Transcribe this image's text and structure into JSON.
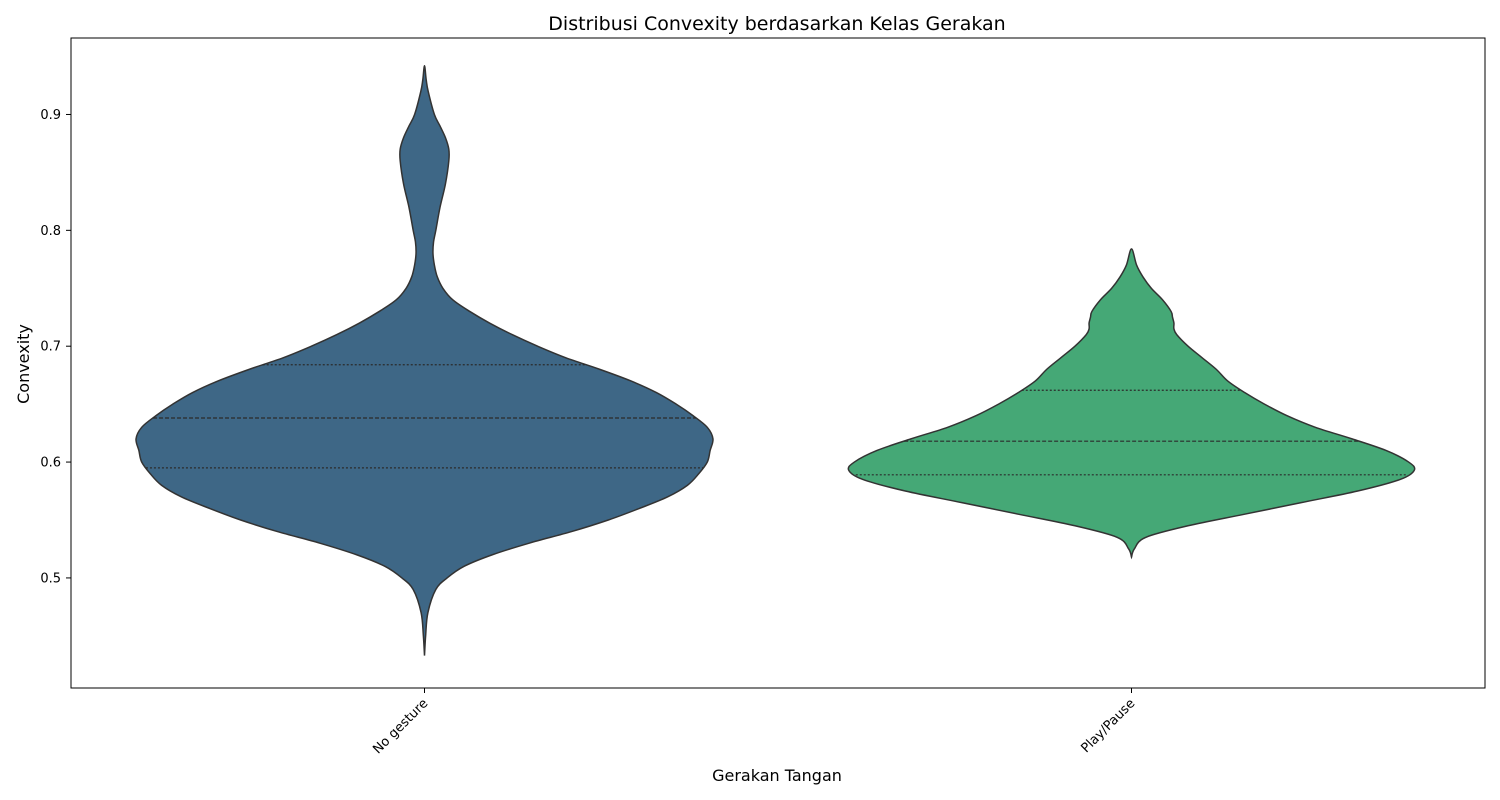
{
  "chart_data": {
    "type": "violin",
    "title": "Distribusi Convexity berdasarkan Kelas Gerakan",
    "xlabel": "Gerakan Tangan",
    "ylabel": "Convexity",
    "categories": [
      "No gesture",
      "Play/Pause"
    ],
    "ylim": [
      0.405,
      0.966
    ],
    "yticks": [
      0.5,
      0.6,
      0.7,
      0.8,
      0.9
    ],
    "ytick_labels": [
      "0.5",
      "0.6",
      "0.7",
      "0.8",
      "0.9"
    ],
    "grid": false,
    "legend": "none",
    "series": [
      {
        "color": "#3e6786",
        "range": [
          0.433,
          0.942
        ],
        "quartiles": {
          "q1": 0.595,
          "median": 0.638,
          "q3": 0.684
        },
        "density": [
          [
            0.433,
            0.0
          ],
          [
            0.45,
            0.004
          ],
          [
            0.47,
            0.012
          ],
          [
            0.49,
            0.04
          ],
          [
            0.5,
            0.08
          ],
          [
            0.51,
            0.14
          ],
          [
            0.52,
            0.24
          ],
          [
            0.53,
            0.37
          ],
          [
            0.54,
            0.52
          ],
          [
            0.55,
            0.65
          ],
          [
            0.56,
            0.76
          ],
          [
            0.57,
            0.86
          ],
          [
            0.58,
            0.93
          ],
          [
            0.59,
            0.97
          ],
          [
            0.6,
            1.0
          ],
          [
            0.61,
            1.01
          ],
          [
            0.62,
            1.02
          ],
          [
            0.63,
            1.0
          ],
          [
            0.64,
            0.95
          ],
          [
            0.65,
            0.89
          ],
          [
            0.66,
            0.82
          ],
          [
            0.67,
            0.73
          ],
          [
            0.68,
            0.62
          ],
          [
            0.69,
            0.5
          ],
          [
            0.7,
            0.4
          ],
          [
            0.71,
            0.31
          ],
          [
            0.72,
            0.23
          ],
          [
            0.73,
            0.16
          ],
          [
            0.74,
            0.1
          ],
          [
            0.75,
            0.065
          ],
          [
            0.76,
            0.045
          ],
          [
            0.77,
            0.035
          ],
          [
            0.78,
            0.03
          ],
          [
            0.79,
            0.032
          ],
          [
            0.8,
            0.04
          ],
          [
            0.82,
            0.055
          ],
          [
            0.84,
            0.074
          ],
          [
            0.86,
            0.086
          ],
          [
            0.87,
            0.086
          ],
          [
            0.88,
            0.074
          ],
          [
            0.89,
            0.055
          ],
          [
            0.9,
            0.035
          ],
          [
            0.92,
            0.013
          ],
          [
            0.93,
            0.006
          ],
          [
            0.942,
            0.0
          ]
        ]
      },
      {
        "color": "#45a876",
        "range": [
          0.518,
          0.784
        ],
        "quartiles": {
          "q1": 0.589,
          "median": 0.618,
          "q3": 0.662
        },
        "density": [
          [
            0.518,
            0.0
          ],
          [
            0.525,
            0.01
          ],
          [
            0.535,
            0.05
          ],
          [
            0.545,
            0.2
          ],
          [
            0.555,
            0.4
          ],
          [
            0.565,
            0.6
          ],
          [
            0.575,
            0.8
          ],
          [
            0.585,
            0.95
          ],
          [
            0.593,
            1.0
          ],
          [
            0.6,
            0.98
          ],
          [
            0.61,
            0.9
          ],
          [
            0.62,
            0.78
          ],
          [
            0.63,
            0.65
          ],
          [
            0.64,
            0.55
          ],
          [
            0.65,
            0.47
          ],
          [
            0.66,
            0.4
          ],
          [
            0.67,
            0.34
          ],
          [
            0.68,
            0.3
          ],
          [
            0.69,
            0.25
          ],
          [
            0.7,
            0.2
          ],
          [
            0.71,
            0.16
          ],
          [
            0.715,
            0.15
          ],
          [
            0.72,
            0.15
          ],
          [
            0.725,
            0.145
          ],
          [
            0.73,
            0.14
          ],
          [
            0.74,
            0.11
          ],
          [
            0.75,
            0.07
          ],
          [
            0.76,
            0.04
          ],
          [
            0.77,
            0.018
          ],
          [
            0.784,
            0.0
          ]
        ]
      }
    ]
  }
}
